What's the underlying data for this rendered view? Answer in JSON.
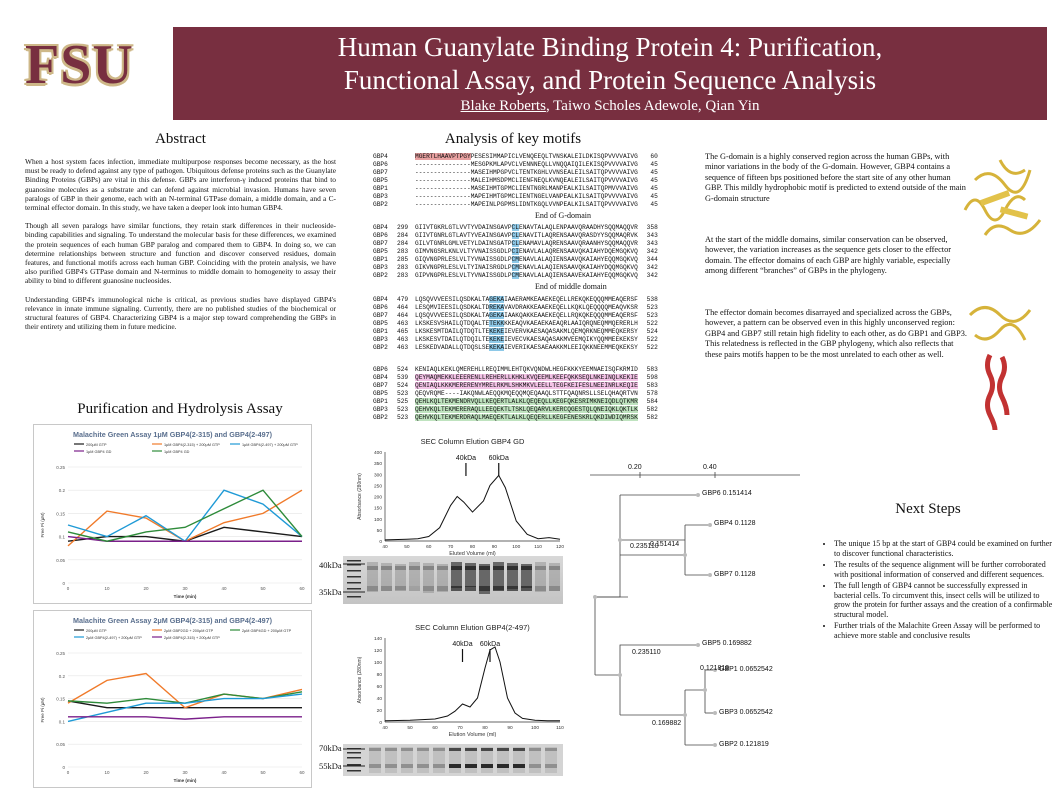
{
  "header": {
    "logo": "FSU",
    "title_line1": "Human Guanylate Binding Protein 4: Purification,",
    "title_line2": "Functional Assay, and Protein Sequence Analysis",
    "author_main": "Blake Roberts",
    "author_rest": ", Taiwo Scholes Adewole, Qian Yin"
  },
  "abstract": {
    "title": "Abstract",
    "p1": "When a host system faces infection, immediate multipurpose responses become necessary, as the host must be ready to defend against any type of pathogen. Ubiquitous defense proteins such as the Guanylate Binding Proteins (GBPs) are vital in this defense. GBPs are interferon-γ induced proteins that bind to guanosine molecules as a substrate and can defend against microbial invasion. Humans have seven paralogs of GBP in their genome, each with an N-terminal GTPase domain, a middle domain, and a C-terminal effector domain. In this study, we have taken a deeper look into human GBP4.",
    "p2": "Though all seven paralogs have similar functions, they retain stark differences in their nucleoside-binding capabilities and signaling. To understand the molecular basis for these differences, we examined the protein sequences of each human GBP paralog and compared them to GBP4. In doing so, we can determine relationships between structure and function and discover conserved residues, domain features, and functional motifs across each human GBP. Coinciding with the protein analysis, we have also purified GBP4's GTPase domain and N-terminus to middle domain to homogeneity to assay their ability to bind to different guanosine nucleosides.",
    "p3": "Understanding GBP4's immunological niche is critical, as previous studies have displayed GBP4's relevance in innate immune signaling. Currently, there are no published studies of the biochemical or structural features of GBP4. Characterizing GBP4 is a major step toward comprehending the GBPs in their entirety and utilizing them in future medicine."
  },
  "motifs": {
    "title": "Analysis of key motifs",
    "end_g": "End of G-domain",
    "end_mid": "End of middle domain",
    "blocks": [
      [
        {
          "name": "GBP4",
          "start": "",
          "seq": "MGERTLHAAVPTPGYPESESIMMAPICLVENQEEQLTVNSKALEILDKISQPVVVVAIVG",
          "end": "60"
        },
        {
          "name": "GBP6",
          "start": "",
          "seq": "---------------MESGPKMLAPVCLVENNNEQLLVNQQAIQILEKISQPVVVVAIVG",
          "end": "45"
        },
        {
          "name": "GBP7",
          "start": "",
          "seq": "---------------MASEIHMPGPVCLTENTKGHLVVNSEALEILSAITQPVVVVAIVG",
          "end": "45"
        },
        {
          "name": "GBP5",
          "start": "",
          "seq": "---------------MALEIHMSDPMCLIENFNEQLKVNQEALEILSAITQPVVVVAIVG",
          "end": "45"
        },
        {
          "name": "GBP1",
          "start": "",
          "seq": "---------------MASEIHMTGPMCLIENTNGRLMANPEALKILSAITQPMVVVAIVG",
          "end": "45"
        },
        {
          "name": "GBP3",
          "start": "",
          "seq": "---------------MAPEIHMTGPMCLIENTNGELVANPEALKILSAITQPVVVVAIVG",
          "end": "45"
        },
        {
          "name": "GBP2",
          "start": "",
          "seq": "---------------MAPEINLPGPMSLIDNTKGQLVVNPEALKILSAITQPVVVVAIVG",
          "end": "45"
        }
      ],
      [
        {
          "name": "GBP4",
          "start": "299",
          "seq": "GIIVTGKRLGTLVVTYVDAINSGAVPCLENAVTALAQLENPAAVQRAADHYSQQMAQQVR",
          "end": "358"
        },
        {
          "name": "GBP6",
          "start": "284",
          "seq": "GIIVTGNRLGTLAVTYVEAINSGAVPCLENAVITLAQRENSAAVQRASDYYSQQMAQRVK",
          "end": "343"
        },
        {
          "name": "GBP7",
          "start": "284",
          "seq": "GILVTGNRLGMLVETYLDAINSGATPCLENAMAVLAQRENSAAVQRAANHYSQQMAQQVR",
          "end": "343"
        },
        {
          "name": "GBP5",
          "start": "283",
          "seq": "GIMVNGSRLKNLVLTYVNAISSGDLPCIENAVLALAQRENSAAVQKAIAHYDQEMGQKVQ",
          "end": "342"
        },
        {
          "name": "GBP1",
          "start": "285",
          "seq": "GIQVNGPRLESLVLTYVNAISSGDLPCMENAVLALAQIENSAAVQKAIAHYEQQMGQKVQ",
          "end": "344"
        },
        {
          "name": "GBP3",
          "start": "283",
          "seq": "GIKVNGPRLESLVLTYINAISRGDLPCMENAVLALAQIENSAAVQKAIAHYDQQMGQKVQ",
          "end": "342"
        },
        {
          "name": "GBP2",
          "start": "283",
          "seq": "GIPVNGPRLESLVLTYVNAISSGDLPCMENAVLALAQIENSAAVEKAIAHYEQQMGQKVQ",
          "end": "342"
        }
      ],
      [
        {
          "name": "GBP4",
          "start": "479",
          "seq": "LQSQVVVEESILQSDKALTAGEKAIAAERAMKEAAEKEQELLREKQKEQQQMMEAQERSF",
          "end": "538"
        },
        {
          "name": "GBP6",
          "start": "464",
          "seq": "LESQMVIEESILQSDKALTDREKAVAVDRAKKEAAEKEQELLKQKLQEQQQQMEAQVKSR",
          "end": "523"
        },
        {
          "name": "GBP7",
          "start": "464",
          "seq": "LQSQVVVEESILQSDKALTAGEKAIAAKQAKKEAAEKEQELLRQKQKEQQQMMEAQERSF",
          "end": "523"
        },
        {
          "name": "GBP5",
          "start": "463",
          "seq": "LKSKESVSHAILQTDQALTETEKKKKEAQVKAEAEKAEAQRLAAIQRQNEQMMQERERLH",
          "end": "522"
        },
        {
          "name": "GBP1",
          "start": "465",
          "seq": "LKSKESMTDAILQTDQTLTEKEKEIEVERVKAESAQASAKMLQEMQRKNEQMMEQKERSY",
          "end": "524"
        },
        {
          "name": "GBP3",
          "start": "463",
          "seq": "LKSKESVTDAILQTDQILTEKEKEIEVECVKAESAQASAKMVEEMQIKYQQMMEEKEKSY",
          "end": "522"
        },
        {
          "name": "GBP2",
          "start": "463",
          "seq": "LESKEDVADALLQTDQSLSEKEKAIEVERIKAESAEAAKKMLEEIQKKNEEMMEQKEKSY",
          "end": "522"
        }
      ],
      [
        {
          "name": "GBP6",
          "start": "524",
          "seq": "KENIAQLKEKLQMEREHLLREQIMMLEHTQKVQNDWLHEGFKKKYEEMNAEISQFKRMID",
          "end": "583"
        },
        {
          "name": "GBP4",
          "start": "539",
          "seq": "QEYMAQMEKKLEEERENLLREHERLLKHKLKVQEEMLKEEFQKKSEQLNKEINQLKEKIE",
          "end": "598"
        },
        {
          "name": "GBP7",
          "start": "524",
          "seq": "QENIAQLKKKMERERENYMRELRKMLSHKMKVLEELLTEGFKEIFESLNEEINRLKEQIE",
          "end": "583"
        },
        {
          "name": "GBP5",
          "start": "523",
          "seq": "QEQVRQME----IAKQNWLAEQQKMQEQQMQEQAAQLSTTFQAQNRSLLSELQHAQRTVN",
          "end": "578"
        },
        {
          "name": "GBP1",
          "start": "525",
          "seq": "QEHLKQLTEKMENDRVQLLKEQERTLALKLQEQEQLLKEGFQKESRIMKNEIQDLQTKMR",
          "end": "584"
        },
        {
          "name": "GBP3",
          "start": "523",
          "seq": "QEHVKQLTEKMERERAQLLEEQEKTLTSKLQEQARVLKERCQGESTQLQNEIQKLQKTLK",
          "end": "582"
        },
        {
          "name": "GBP2",
          "start": "523",
          "seq": "QEHVKQLTEKMERDRAQLMAEQEKTLALKLQEQERLLKEGFENESKRLQKDIWDIQMRSK",
          "end": "582"
        }
      ]
    ]
  },
  "right_text": {
    "p1": "The G-domain is a highly conserved region across the human GBPs, with minor variations in the body of the G-domain. However, GBP4 contains a sequence of fifteen bps positioned before the start site of any other human GBP. This mildly hydrophobic motif is predicted to extend outside of the main G-domain structure",
    "p2": "At the start of the middle domains, similar conservation can be observed, however, the variation increases as the sequence gets closer to the effector domain. The effector domains of each GBP are highly variable, especially among different “branches” of GBPs in the phylogeny.",
    "p3": "The effector domain becomes disarrayed and specialized across the GBPs, however, a pattern can be observed even in this highly unconserved region: GBP4 and GBP7 still retain high fidelity to each other, as do GBP1 and GBP3. This relatedness is reflected in the GBP phylogeny, which also reflects that these pairs motifs happen to be the most unrelated to each other as well."
  },
  "purification": {
    "title": "Purification and Hydrolysis Assay",
    "chart1": {
      "title": "Malachite Green Assay 1μM GBP4(2-315) and GBP4(2-497)",
      "ylabel": "Free Pi (μM)",
      "xlabel": "Time (min)",
      "legend": [
        "200μM GTP",
        "1μM GBP4(2-315) + 200μM GTP",
        "1μM GBP4(2-497) + 200μM GTP",
        "1μM GBP4 GD",
        "1μM GBP4 GD"
      ]
    },
    "chart2": {
      "title": "Malachite Green Assay 2μM GBP4(2-315) and GBP4(2-497)",
      "ylabel": "Free Pi (μM)",
      "xlabel": "Time (min)",
      "legend": [
        "200μM GTP",
        "2μM GBP2GD + 200μM GTP",
        "2μM GBP4GD + 200μM GTP",
        "2μM GBP4(2-497) + 200μM GTP",
        "2μM GBP4(2-315) + 200μM GTP"
      ]
    },
    "sec1": {
      "title": "SEC Column Elution GBP4 GD",
      "xlabel": "Eluted Volume (ml)",
      "ylabel": "Absorbance (280nm)",
      "m1": "40kDa",
      "m2": "60kDa"
    },
    "sec2": {
      "title": "SEC Column Elution GBP4(2-497)",
      "xlabel": "Elution Volume (ml)",
      "ylabel": "Absorbance (280nm)",
      "m1": "40kDa",
      "m2": "60kDa"
    },
    "gel1": {
      "m1": "40kDa",
      "m2": "35kDa"
    },
    "gel2": {
      "m1": "70kDa",
      "m2": "55kDa"
    }
  },
  "chart_data": [
    {
      "type": "line",
      "title": "Malachite Green Assay 1μM GBP4(2-315) and GBP4(2-497)",
      "xlabel": "Time (min)",
      "ylabel": "Free Pi (μM)",
      "x": [
        0,
        10,
        20,
        30,
        40,
        50,
        60
      ],
      "xlim": [
        0,
        60
      ],
      "ylim": [
        0,
        0.25
      ],
      "yticks": [
        0,
        0.05,
        0.1,
        0.15,
        0.2,
        0.25
      ],
      "series": [
        {
          "name": "200μM GTP",
          "color": "#1a1a1a",
          "values": [
            0.09,
            0.1,
            0.1,
            0.09,
            0.12,
            0.11,
            0.1
          ]
        },
        {
          "name": "1μM GBP4(2-315) + 200μM GTP",
          "color": "#f07a2a",
          "values": [
            0.08,
            0.155,
            0.14,
            0.09,
            0.13,
            0.15,
            0.2
          ]
        },
        {
          "name": "1μM GBP4(2-497) + 200μM GTP",
          "color": "#1f9ad6",
          "values": [
            0.125,
            0.1,
            0.145,
            0.09,
            0.2,
            0.17,
            0.1
          ]
        },
        {
          "name": "1μM GBP4 GD",
          "color": "#7a1f8a",
          "values": [
            0.1,
            0.09,
            0.09,
            0.09,
            0.09,
            0.09,
            0.09
          ]
        },
        {
          "name": "1μM GBP4 GD",
          "color": "#2e8b3a",
          "values": [
            0.11,
            0.09,
            0.11,
            0.12,
            0.16,
            0.2,
            0.1
          ]
        }
      ]
    },
    {
      "type": "line",
      "title": "Malachite Green Assay 2μM GBP4(2-315) and GBP4(2-497)",
      "xlabel": "Time (min)",
      "ylabel": "Free Pi (μM)",
      "x": [
        0,
        10,
        20,
        30,
        40,
        50,
        60
      ],
      "xlim": [
        0,
        60
      ],
      "ylim": [
        0,
        0.25
      ],
      "yticks": [
        0,
        0.05,
        0.1,
        0.15,
        0.2,
        0.25
      ],
      "series": [
        {
          "name": "200μM GTP",
          "color": "#1a1a1a",
          "values": [
            0.145,
            0.13,
            0.13,
            0.13,
            0.13,
            0.13,
            0.13
          ]
        },
        {
          "name": "2μM GBP2GD + 200μM GTP",
          "color": "#f07a2a",
          "values": [
            0.14,
            0.19,
            0.205,
            0.13,
            0.16,
            0.15,
            0.17
          ]
        },
        {
          "name": "2μM GBP4GD + 200μM GTP",
          "color": "#2e8b3a",
          "values": [
            0.145,
            0.14,
            0.15,
            0.14,
            0.16,
            0.15,
            0.165
          ]
        },
        {
          "name": "2μM GBP4(2-497) + 200μM GTP",
          "color": "#1f9ad6",
          "values": [
            0.1,
            0.12,
            0.14,
            0.14,
            0.15,
            0.15,
            0.16
          ]
        },
        {
          "name": "2μM GBP4(2-315) + 200μM GTP",
          "color": "#7a1f8a",
          "values": [
            0.11,
            0.11,
            0.11,
            0.105,
            0.11,
            0.11,
            0.11
          ]
        }
      ]
    },
    {
      "type": "line",
      "title": "SEC Column Elution GBP4 GD",
      "xlabel": "Eluted Volume (ml)",
      "ylabel": "Absorbance (280nm)",
      "xlim": [
        40,
        120
      ],
      "ylim": [
        0,
        400
      ],
      "xticks": [
        40,
        50,
        60,
        70,
        80,
        90,
        100,
        110,
        120
      ],
      "yticks": [
        0,
        50,
        100,
        150,
        200,
        250,
        300,
        350,
        400
      ],
      "x": [
        40,
        50,
        55,
        60,
        65,
        70,
        73,
        76,
        80,
        85,
        88,
        92,
        95,
        100,
        105,
        110,
        115,
        120
      ],
      "series": [
        {
          "name": "",
          "values": [
            5,
            8,
            10,
            20,
            60,
            160,
            200,
            175,
            130,
            180,
            250,
            295,
            240,
            90,
            30,
            10,
            15,
            8
          ]
        }
      ]
    },
    {
      "type": "line",
      "title": "SEC Column Elution GBP4(2-497)",
      "xlabel": "Elution Volume (ml)",
      "ylabel": "Absorbance (280nm)",
      "xlim": [
        40,
        110
      ],
      "ylim": [
        0,
        140
      ],
      "xticks": [
        40,
        50,
        60,
        70,
        80,
        90,
        100,
        110
      ],
      "yticks": [
        0,
        20,
        40,
        60,
        80,
        100,
        120,
        140
      ],
      "x": [
        40,
        50,
        60,
        65,
        68,
        71,
        74,
        77,
        80,
        82,
        84,
        86,
        89,
        92,
        95,
        100,
        105,
        110
      ],
      "series": [
        {
          "name": "",
          "values": [
            2,
            3,
            5,
            10,
            18,
            30,
            25,
            40,
            90,
            120,
            125,
            100,
            40,
            15,
            6,
            3,
            2,
            2
          ]
        }
      ]
    }
  ],
  "tree": {
    "scale1": "0.20",
    "scale2": "0.40",
    "b_top": "0.235110",
    "b_47": "0.151414",
    "b_bot": "0.235110",
    "b_123": "0.169882",
    "b_13": "0.121819",
    "leaves": [
      {
        "label": "GBP6 0.151414"
      },
      {
        "label": "GBP4 0.1128"
      },
      {
        "label": "GBP7 0.1128"
      },
      {
        "label": "GBP5 0.169882"
      },
      {
        "label": "GBP1 0.0652542"
      },
      {
        "label": "GBP3 0.0652542"
      },
      {
        "label": "GBP2 0.121819"
      }
    ]
  },
  "next_steps": {
    "title": "Next Steps",
    "items": [
      "The unique 15 bp at the start of GBP4 could be examined on further to discover functional characteristics.",
      "The results of the sequence alignment will be further corroborated with positional information of conserved and different sequences.",
      "The full length of GBP4 cannot be successfully expressed in bacterial cells. To circumvent this, insect cells will be utilized to grow the protein for further assays and the creation of a confirmable structural model.",
      "Further trials of the Malachite Green Assay will be performed to achieve more stable and conclusive results"
    ]
  }
}
